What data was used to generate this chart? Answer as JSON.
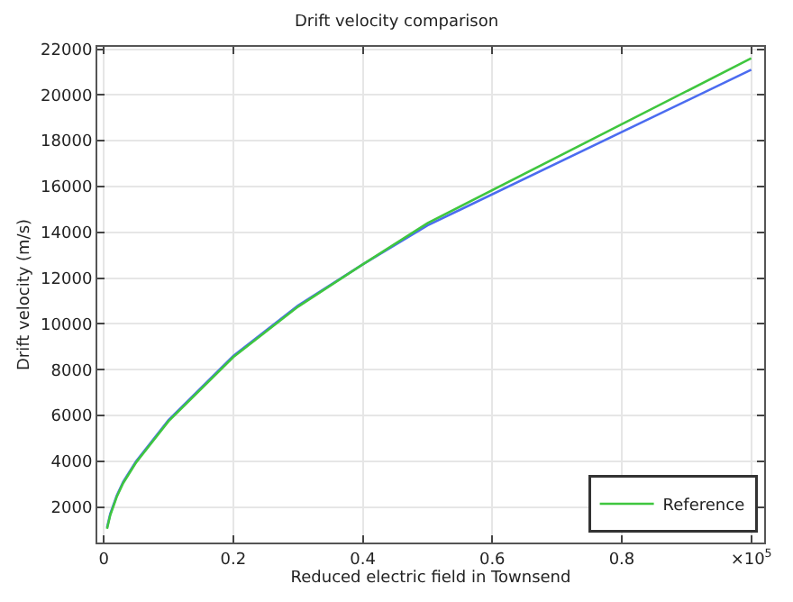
{
  "chart_data": {
    "type": "line",
    "title": "Drift velocity comparison",
    "xlabel": "Reduced electric field in Townsend",
    "ylabel": "Drift velocity (m/s)",
    "x": [
      0.005,
      0.01,
      0.02,
      0.03,
      0.05,
      0.1,
      0.2,
      0.3,
      0.4,
      0.5,
      1.0
    ],
    "series": [
      {
        "color": "#4b6cf0",
        "values": [
          1100,
          1700,
          2500,
          3100,
          4000,
          5800,
          8600,
          10800,
          12600,
          14300,
          21100
        ]
      },
      {
        "name": "Reference",
        "color": "#3fc63f",
        "values": [
          1050,
          1650,
          2450,
          3050,
          3950,
          5750,
          8550,
          10750,
          12600,
          14400,
          21600
        ]
      }
    ],
    "xlim": [
      -0.01,
      1.02
    ],
    "ylim": [
      450,
      22100
    ],
    "xticks": [
      0,
      0.2,
      0.4,
      0.6,
      0.8,
      {
        "value": 1,
        "label": "×10$^{5}$"
      }
    ],
    "yticks": [
      2000,
      4000,
      6000,
      8000,
      10000,
      12000,
      14000,
      16000,
      18000,
      20000,
      22000
    ],
    "grid": true,
    "legend": "bottom right",
    "line_style": "solid",
    "marker": "none"
  }
}
